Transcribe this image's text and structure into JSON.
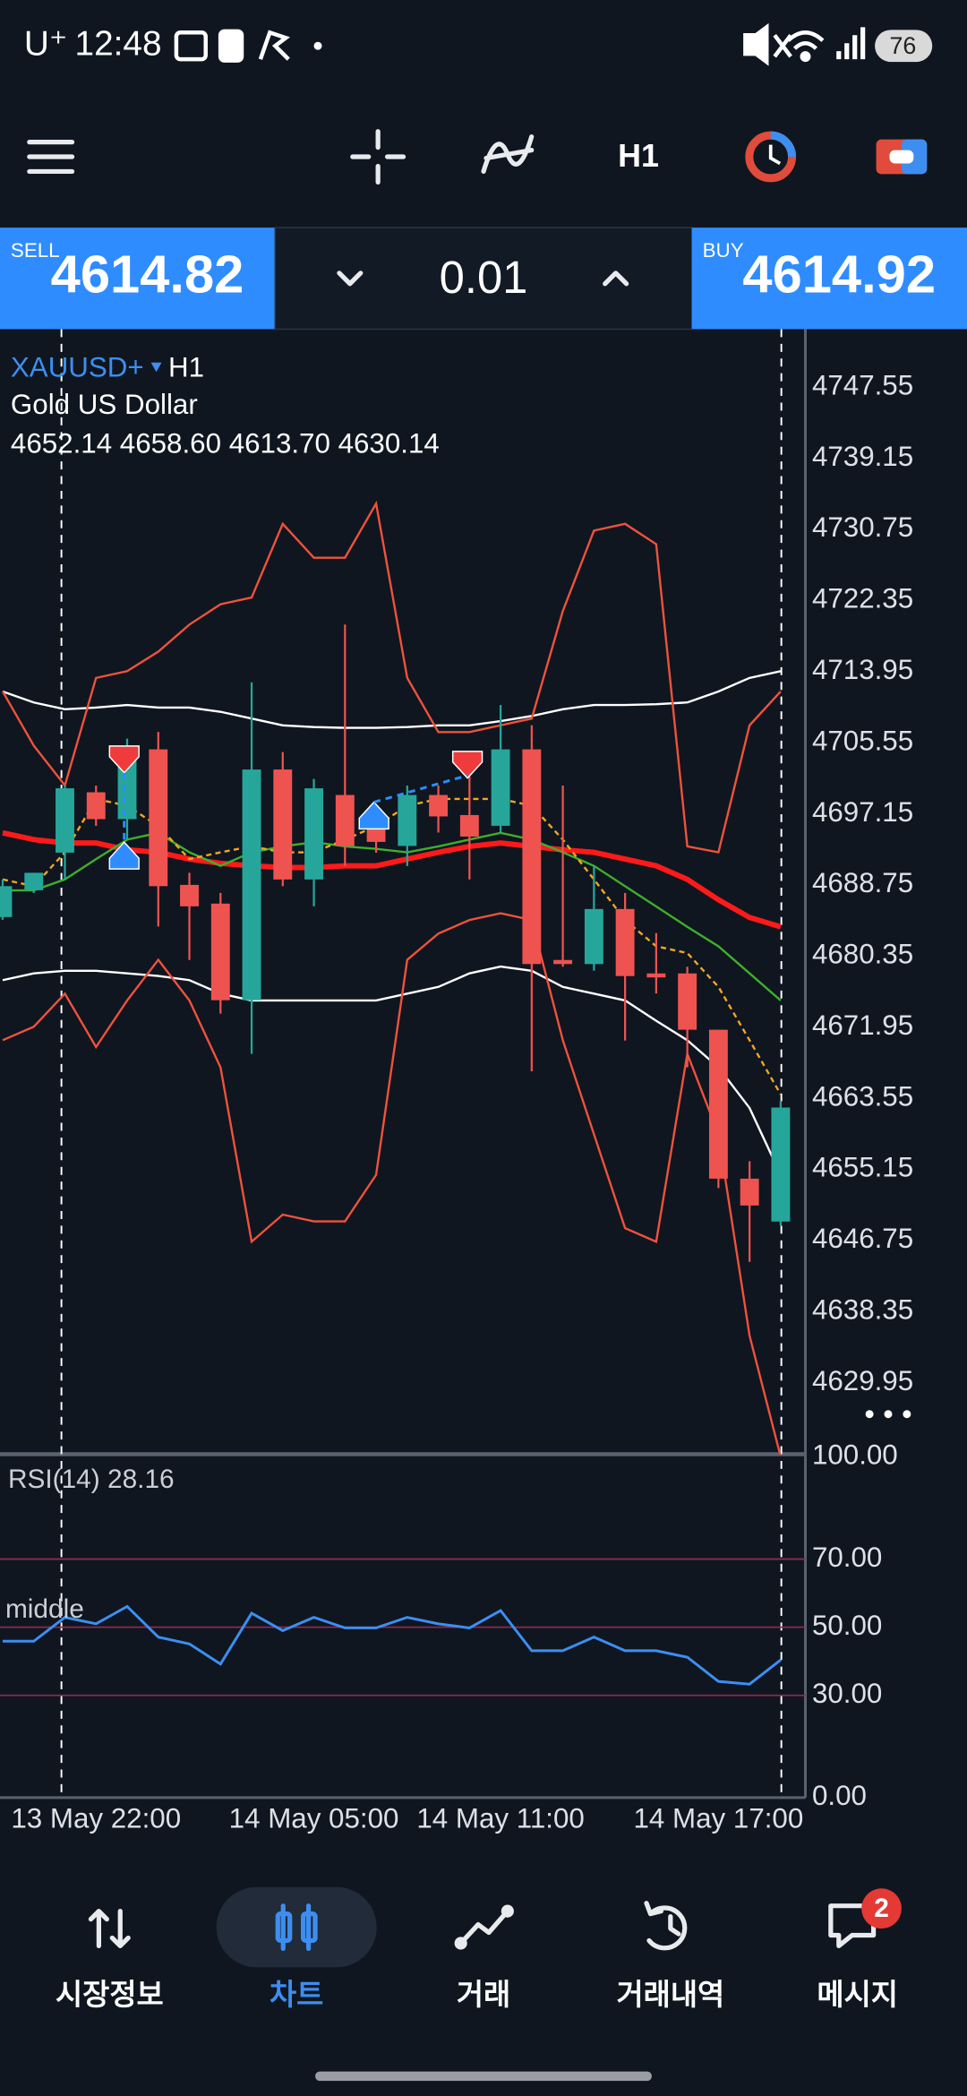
{
  "status_bar": {
    "carrier": "U⁺",
    "time": "12:48",
    "battery": "76"
  },
  "toolbar": {
    "timeframe": "H1"
  },
  "trade_bar": {
    "sell_label": "SELL",
    "sell_price": "4614.82",
    "lot": "0.01",
    "buy_label": "BUY",
    "buy_price": "4614.92"
  },
  "chart_data": [
    {
      "type": "candlestick",
      "symbol": "XAUUSD+",
      "timeframe": "H1",
      "description": "Gold US Dollar",
      "ohlc": "4652.14 4658.60 4613.70 4630.14",
      "up_color": "#26a69a",
      "down_color": "#ef5350",
      "categories": [
        null,
        null,
        null,
        "13 May 22:00",
        null,
        null,
        null,
        null,
        null,
        null,
        "14 May 05:00",
        null,
        null,
        null,
        null,
        null,
        "14 May 11:00",
        null,
        null,
        null,
        null,
        null,
        null,
        "14 May 17:00",
        null,
        null
      ],
      "open": [
        4684.95,
        4688.12,
        4692.56,
        4699.69,
        4696.52,
        4704.76,
        4688.75,
        4686.54,
        4675.13,
        4702.38,
        4689.39,
        4699.37,
        4695.73,
        4693.35,
        4699.37,
        4697.0,
        4695.73,
        4704.76,
        4679.88,
        4679.4,
        4685.9,
        4678.29,
        4678.29,
        4671.64,
        4654.05,
        4648.98
      ],
      "high": [
        4689.39,
        4690.18,
        4700.48,
        4700.48,
        4706.03,
        4706.82,
        4690.18,
        4687.8,
        4712.68,
        4704.44,
        4701.27,
        4719.5,
        4698.1,
        4700.48,
        4700.48,
        4702.86,
        4709.99,
        4707.61,
        4700.48,
        4690.97,
        4687.8,
        4683.05,
        4679.09,
        4671.64,
        4656.11,
        4663.24
      ],
      "low": [
        4684.63,
        4687.8,
        4689.39,
        4695.73,
        4694.14,
        4683.84,
        4679.88,
        4673.54,
        4668.79,
        4688.6,
        4686.22,
        4690.97,
        4692.56,
        4690.97,
        4694.94,
        4689.39,
        4694.94,
        4666.73,
        4679.09,
        4678.61,
        4670.37,
        4675.92,
        4667.2,
        4652.94,
        4644.22,
        4648.5
      ],
      "close": [
        4688.6,
        4690.18,
        4700.16,
        4696.52,
        4703.65,
        4688.6,
        4686.22,
        4675.13,
        4702.38,
        4689.39,
        4700.16,
        4693.35,
        4693.83,
        4699.37,
        4696.84,
        4694.46,
        4704.76,
        4679.4,
        4679.4,
        4685.9,
        4677.98,
        4677.82,
        4671.64,
        4654.05,
        4650.88,
        4662.45
      ],
      "lines": [
        {
          "color": "#ff1a1a",
          "values": [
            4694.9,
            4694.1,
            4693.7,
            4693.7,
            4692.9,
            4692.6,
            4691.8,
            4691.3,
            4691.0,
            4690.8,
            4690.8,
            4691.0,
            4691.0,
            4691.8,
            4692.6,
            4693.3,
            4693.7,
            4693.3,
            4692.9,
            4692.6,
            4691.8,
            4691.0,
            4689.4,
            4687.0,
            4684.9,
            4683.8
          ]
        },
        {
          "color": "#ffffff",
          "values": [
            4711.6,
            4710.3,
            4709.5,
            4709.7,
            4710.0,
            4709.7,
            4709.7,
            4709.2,
            4708.4,
            4707.6,
            4707.4,
            4707.3,
            4707.3,
            4707.4,
            4707.6,
            4707.6,
            4708.1,
            4708.7,
            4709.5,
            4710.0,
            4710.0,
            4710.1,
            4710.3,
            4711.6,
            4713.2,
            4714.0
          ]
        },
        {
          "color": "#ffffff",
          "values": [
            4677.5,
            4678.3,
            4678.6,
            4678.6,
            4678.3,
            4678.0,
            4677.5,
            4675.9,
            4675.1,
            4675.1,
            4675.1,
            4675.1,
            4675.1,
            4675.9,
            4676.7,
            4678.3,
            4679.1,
            4678.6,
            4676.7,
            4675.9,
            4675.1,
            4672.7,
            4670.4,
            4667.2,
            4662.4,
            4654.5
          ]
        },
        {
          "color": "#f0523c",
          "values": [
            4711.6,
            4705.2,
            4700.5,
            4713.2,
            4714.0,
            4716.3,
            4719.5,
            4721.9,
            4722.7,
            4731.4,
            4727.4,
            4727.4,
            4733.8,
            4713.2,
            4706.8,
            4706.8,
            4707.6,
            4708.4,
            4721.1,
            4730.6,
            4731.4,
            4729.0,
            4693.3,
            4692.6,
            4707.6,
            4711.6
          ]
        },
        {
          "color": "#f0523c",
          "values": [
            4670.4,
            4672.0,
            4675.9,
            4669.6,
            4675.1,
            4679.9,
            4675.1,
            4667.2,
            4646.6,
            4649.8,
            4649.0,
            4649.0,
            4654.5,
            4679.9,
            4683.0,
            4684.6,
            4685.4,
            4684.6,
            4670.4,
            4659.3,
            4648.2,
            4646.6,
            4668.8,
            4659.3,
            4635.5,
            4621.2
          ]
        },
        {
          "color": "#3fae2a",
          "values": [
            4688.1,
            4688.1,
            4689.4,
            4691.8,
            4694.1,
            4694.9,
            4692.6,
            4691.0,
            4692.6,
            4693.3,
            4693.8,
            4693.3,
            4693.0,
            4692.6,
            4693.3,
            4694.1,
            4694.9,
            4694.1,
            4692.6,
            4691.0,
            4688.6,
            4686.2,
            4683.8,
            4681.5,
            4678.3,
            4675.1
          ]
        },
        {
          "color": "#f5a623",
          "values": [
            4689.4,
            4688.6,
            4692.6,
            4698.9,
            4698.1,
            4695.7,
            4691.8,
            4692.6,
            4693.3,
            4692.6,
            4692.6,
            4694.1,
            4695.7,
            4698.1,
            4698.9,
            4698.9,
            4698.9,
            4698.1,
            4694.1,
            4689.4,
            4684.6,
            4681.5,
            4680.7,
            4676.7,
            4670.4,
            4664.0
          ]
        }
      ],
      "ylim": [
        4621.5,
        4754.4
      ],
      "yticks": [
        4747.55,
        4739.15,
        4730.75,
        4722.35,
        4713.95,
        4705.55,
        4697.15,
        4688.75,
        4680.35,
        4671.95,
        4663.55,
        4655.15,
        4646.75,
        4638.35,
        4629.95
      ]
    },
    {
      "type": "line",
      "title": "RSI(14) 28.16",
      "annotation": "middle",
      "color": "#3d8ef0",
      "level_color": "#8e2b4f",
      "values": [
        45.9,
        45.9,
        52.9,
        51.0,
        56.1,
        47.1,
        45.1,
        39.2,
        54.1,
        49.0,
        52.9,
        49.8,
        49.8,
        52.9,
        51.0,
        49.8,
        54.9,
        43.1,
        43.1,
        47.1,
        43.1,
        43.1,
        41.2,
        34.1,
        33.3,
        40.4
      ],
      "ylim": [
        0,
        100
      ],
      "yticks": [
        {
          "value": 100,
          "label": "100.00"
        },
        {
          "value": 70,
          "label": "70.00"
        },
        {
          "value": 50,
          "label": "50.00"
        },
        {
          "value": 30,
          "label": "30.00"
        },
        {
          "value": 0,
          "label": "0.00"
        }
      ]
    }
  ],
  "nav": {
    "items": [
      "시장정보",
      "차트",
      "거래",
      "거래내역",
      "메시지"
    ],
    "badge": "2"
  }
}
